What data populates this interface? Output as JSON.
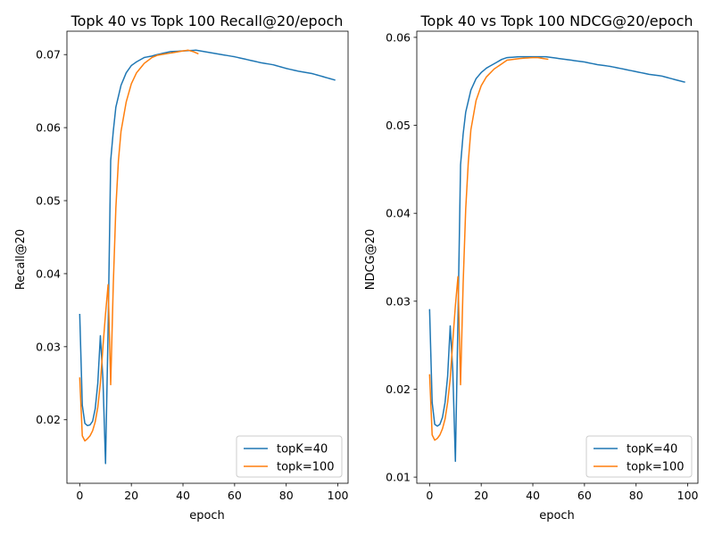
{
  "chart_data": [
    {
      "type": "line",
      "title": "Topk 40 vs Topk 100 Recall@20/epoch",
      "xlabel": "epoch",
      "ylabel": "Recall@20",
      "xlim": [
        -4.95,
        103.95
      ],
      "ylim": [
        0.0113,
        0.0732
      ],
      "xticks": [
        0,
        20,
        40,
        60,
        80,
        100
      ],
      "xtick_labels": [
        "0",
        "20",
        "40",
        "60",
        "80",
        "100"
      ],
      "yticks": [
        0.02,
        0.03,
        0.04,
        0.05,
        0.06,
        0.07
      ],
      "ytick_labels": [
        "0.02",
        "0.03",
        "0.04",
        "0.05",
        "0.06",
        "0.07"
      ],
      "legend_position": "lower-right",
      "series": [
        {
          "name": "topK=40",
          "color": "#1f77b4",
          "keypoints": [
            [
              0,
              0.0345
            ],
            [
              1,
              0.022
            ],
            [
              2,
              0.0195
            ],
            [
              3,
              0.0192
            ],
            [
              4,
              0.0193
            ],
            [
              5,
              0.0198
            ],
            [
              6,
              0.0215
            ],
            [
              7,
              0.025
            ],
            [
              8,
              0.0315
            ],
            [
              9,
              0.0255
            ],
            [
              10,
              0.014
            ],
            [
              11,
              0.0325
            ],
            [
              12,
              0.0555
            ],
            [
              13,
              0.0595
            ],
            [
              14,
              0.0628
            ],
            [
              16,
              0.0658
            ],
            [
              18,
              0.0675
            ],
            [
              20,
              0.0685
            ],
            [
              22,
              0.069
            ],
            [
              25,
              0.0696
            ],
            [
              28,
              0.0698
            ],
            [
              30,
              0.07
            ],
            [
              35,
              0.0704
            ],
            [
              40,
              0.0705
            ],
            [
              45,
              0.0706
            ],
            [
              50,
              0.0703
            ],
            [
              55,
              0.07
            ],
            [
              60,
              0.0697
            ],
            [
              65,
              0.0693
            ],
            [
              70,
              0.0689
            ],
            [
              75,
              0.0686
            ],
            [
              80,
              0.0681
            ],
            [
              85,
              0.0677
            ],
            [
              90,
              0.0674
            ],
            [
              95,
              0.0669
            ],
            [
              99,
              0.0665
            ]
          ]
        },
        {
          "name": "topk=100",
          "color": "#ff7f0e",
          "keypoints": [
            [
              0,
              0.0258
            ],
            [
              1,
              0.0178
            ],
            [
              2,
              0.0171
            ],
            [
              3,
              0.0174
            ],
            [
              4,
              0.0178
            ],
            [
              5,
              0.0185
            ],
            [
              6,
              0.0197
            ],
            [
              7,
              0.0217
            ],
            [
              8,
              0.025
            ],
            [
              9,
              0.03
            ],
            [
              10,
              0.0345
            ],
            [
              11,
              0.0385
            ],
            [
              12,
              0.0248
            ],
            [
              13,
              0.0385
            ],
            [
              14,
              0.049
            ],
            [
              15,
              0.0555
            ],
            [
              16,
              0.0595
            ],
            [
              18,
              0.0635
            ],
            [
              20,
              0.066
            ],
            [
              22,
              0.0675
            ],
            [
              25,
              0.0688
            ],
            [
              28,
              0.0696
            ],
            [
              30,
              0.0699
            ],
            [
              35,
              0.0702
            ],
            [
              40,
              0.0705
            ],
            [
              42,
              0.0706
            ],
            [
              44,
              0.0704
            ],
            [
              46,
              0.0701
            ]
          ]
        }
      ]
    },
    {
      "type": "line",
      "title": "Topk 40 vs Topk 100 NDCG@20/epoch",
      "xlabel": "epoch",
      "ylabel": "NDCG@20",
      "xlim": [
        -4.95,
        103.95
      ],
      "ylim": [
        0.0093,
        0.0607
      ],
      "xticks": [
        0,
        20,
        40,
        60,
        80,
        100
      ],
      "xtick_labels": [
        "0",
        "20",
        "40",
        "60",
        "80",
        "100"
      ],
      "yticks": [
        0.01,
        0.02,
        0.03,
        0.04,
        0.05,
        0.06
      ],
      "ytick_labels": [
        "0.01",
        "0.02",
        "0.03",
        "0.04",
        "0.05",
        "0.06"
      ],
      "legend_position": "lower-right",
      "series": [
        {
          "name": "topK=40",
          "color": "#1f77b4",
          "keypoints": [
            [
              0,
              0.0291
            ],
            [
              1,
              0.0185
            ],
            [
              2,
              0.016
            ],
            [
              3,
              0.0158
            ],
            [
              4,
              0.016
            ],
            [
              5,
              0.0168
            ],
            [
              6,
              0.0185
            ],
            [
              7,
              0.0215
            ],
            [
              8,
              0.0272
            ],
            [
              9,
              0.022
            ],
            [
              10,
              0.0118
            ],
            [
              11,
              0.028
            ],
            [
              12,
              0.0455
            ],
            [
              13,
              0.049
            ],
            [
              14,
              0.0515
            ],
            [
              16,
              0.054
            ],
            [
              18,
              0.0553
            ],
            [
              20,
              0.056
            ],
            [
              22,
              0.0565
            ],
            [
              25,
              0.057
            ],
            [
              28,
              0.0575
            ],
            [
              30,
              0.0577
            ],
            [
              35,
              0.0578
            ],
            [
              40,
              0.0578
            ],
            [
              45,
              0.0578
            ],
            [
              50,
              0.0576
            ],
            [
              55,
              0.0574
            ],
            [
              60,
              0.0572
            ],
            [
              65,
              0.0569
            ],
            [
              70,
              0.0567
            ],
            [
              75,
              0.0564
            ],
            [
              80,
              0.0561
            ],
            [
              85,
              0.0558
            ],
            [
              90,
              0.0556
            ],
            [
              95,
              0.0552
            ],
            [
              99,
              0.0549
            ]
          ]
        },
        {
          "name": "topk=100",
          "color": "#ff7f0e",
          "keypoints": [
            [
              0,
              0.0217
            ],
            [
              1,
              0.0148
            ],
            [
              2,
              0.0142
            ],
            [
              3,
              0.0144
            ],
            [
              4,
              0.0148
            ],
            [
              5,
              0.0155
            ],
            [
              6,
              0.0166
            ],
            [
              7,
              0.0185
            ],
            [
              8,
              0.0212
            ],
            [
              9,
              0.0255
            ],
            [
              10,
              0.0295
            ],
            [
              11,
              0.0328
            ],
            [
              12,
              0.0205
            ],
            [
              13,
              0.032
            ],
            [
              14,
              0.0405
            ],
            [
              15,
              0.0458
            ],
            [
              16,
              0.0495
            ],
            [
              18,
              0.0528
            ],
            [
              20,
              0.0545
            ],
            [
              22,
              0.0555
            ],
            [
              25,
              0.0564
            ],
            [
              28,
              0.057
            ],
            [
              30,
              0.0574
            ],
            [
              35,
              0.0576
            ],
            [
              40,
              0.0577
            ],
            [
              42,
              0.0577
            ],
            [
              44,
              0.0576
            ],
            [
              46,
              0.0575
            ]
          ]
        }
      ]
    }
  ]
}
